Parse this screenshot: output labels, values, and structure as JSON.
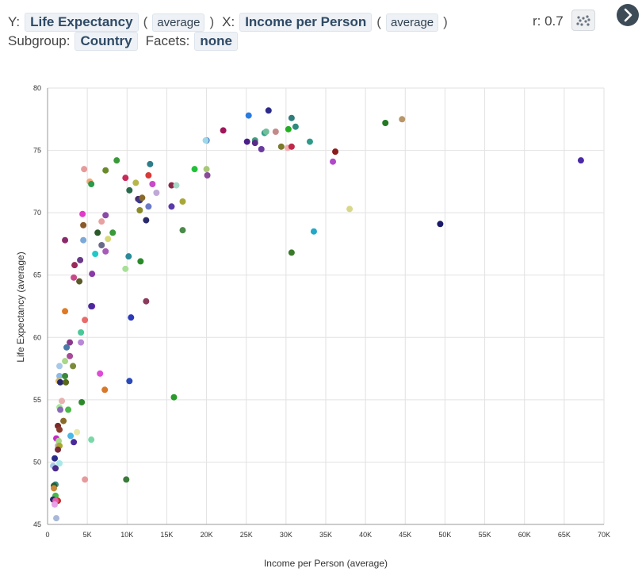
{
  "controls": {
    "y_prefix": "Y:",
    "y_variable": "Life Expectancy",
    "y_aggregation": "average",
    "x_prefix": "X:",
    "x_variable": "Income per Person",
    "x_aggregation": "average",
    "open_paren": "(",
    "close_paren": ")",
    "subgroup_label": "Subgroup:",
    "subgroup_value": "Country",
    "facets_label": "Facets:",
    "facets_value": "none",
    "correlation": "r: 0.7"
  },
  "icons": {
    "chart_type": "scatter-plot-icon",
    "next": "chevron-right-icon"
  },
  "colors": {
    "pill_bg": "#eef2f6",
    "pill_text": "#2f4a66",
    "next_button": "#3d4b57",
    "grid": "#e2e2e2"
  },
  "chart_data": {
    "type": "scatter",
    "xlabel": "Income per Person (average)",
    "ylabel": "Life Expectancy (average)",
    "xlim": [
      0,
      70000
    ],
    "ylim": [
      45,
      80
    ],
    "x_ticks": [
      0,
      5000,
      10000,
      15000,
      20000,
      25000,
      30000,
      35000,
      40000,
      45000,
      50000,
      55000,
      60000,
      65000,
      70000
    ],
    "x_tick_labels": [
      "0",
      "5K",
      "10K",
      "15K",
      "20K",
      "25K",
      "30K",
      "35K",
      "40K",
      "45K",
      "50K",
      "55K",
      "60K",
      "65K",
      "70K"
    ],
    "y_ticks": [
      45,
      50,
      55,
      60,
      65,
      70,
      75,
      80
    ],
    "y_tick_labels": [
      "45",
      "50",
      "55",
      "60",
      "65",
      "70",
      "75",
      "80"
    ],
    "grid": true,
    "points": [
      {
        "x": 25300,
        "y": 77.8,
        "color": "#2a7be0"
      },
      {
        "x": 27800,
        "y": 78.2,
        "color": "#2b2b8a"
      },
      {
        "x": 30700,
        "y": 77.6,
        "color": "#2e7d7d"
      },
      {
        "x": 31200,
        "y": 76.9,
        "color": "#2e8b7d"
      },
      {
        "x": 22100,
        "y": 76.6,
        "color": "#a0155a"
      },
      {
        "x": 27300,
        "y": 76.4,
        "color": "#34a08a"
      },
      {
        "x": 28700,
        "y": 76.5,
        "color": "#c48a8a"
      },
      {
        "x": 30300,
        "y": 76.7,
        "color": "#22b022"
      },
      {
        "x": 27500,
        "y": 76.5,
        "color": "#6fbf9a"
      },
      {
        "x": 42500,
        "y": 77.2,
        "color": "#237a23"
      },
      {
        "x": 44600,
        "y": 77.5,
        "color": "#b8966a"
      },
      {
        "x": 20000,
        "y": 75.8,
        "color": "#2a5fc4"
      },
      {
        "x": 19900,
        "y": 75.8,
        "color": "#9ed7e8"
      },
      {
        "x": 25100,
        "y": 75.7,
        "color": "#4a1f8a"
      },
      {
        "x": 26100,
        "y": 75.8,
        "color": "#3fa07a"
      },
      {
        "x": 26100,
        "y": 75.6,
        "color": "#5a2a8a"
      },
      {
        "x": 26900,
        "y": 75.1,
        "color": "#6a3aa0"
      },
      {
        "x": 29400,
        "y": 75.3,
        "color": "#7a7a2a"
      },
      {
        "x": 30200,
        "y": 75.2,
        "color": "#f0b0b0"
      },
      {
        "x": 30700,
        "y": 75.3,
        "color": "#c0284a"
      },
      {
        "x": 33000,
        "y": 75.7,
        "color": "#2e9b8a"
      },
      {
        "x": 36200,
        "y": 74.9,
        "color": "#8b1a1a"
      },
      {
        "x": 35900,
        "y": 74.1,
        "color": "#b048c8"
      },
      {
        "x": 67100,
        "y": 74.2,
        "color": "#4a2aa8"
      },
      {
        "x": 8700,
        "y": 74.2,
        "color": "#3a9a3a"
      },
      {
        "x": 12900,
        "y": 73.9,
        "color": "#2e7d8a"
      },
      {
        "x": 7300,
        "y": 73.4,
        "color": "#6a8a2a"
      },
      {
        "x": 4600,
        "y": 73.5,
        "color": "#e89a9a"
      },
      {
        "x": 18500,
        "y": 73.5,
        "color": "#22c03a"
      },
      {
        "x": 20000,
        "y": 73.5,
        "color": "#a8c878"
      },
      {
        "x": 20100,
        "y": 73.0,
        "color": "#8a4a9a"
      },
      {
        "x": 12700,
        "y": 73.0,
        "color": "#d83a3a"
      },
      {
        "x": 9800,
        "y": 72.8,
        "color": "#c82a5a"
      },
      {
        "x": 5300,
        "y": 72.5,
        "color": "#f0a878"
      },
      {
        "x": 5500,
        "y": 72.3,
        "color": "#2a9a4a"
      },
      {
        "x": 11100,
        "y": 72.4,
        "color": "#b8b84a"
      },
      {
        "x": 13200,
        "y": 72.3,
        "color": "#c84ac8"
      },
      {
        "x": 15600,
        "y": 72.2,
        "color": "#8a2a4a"
      },
      {
        "x": 16200,
        "y": 72.2,
        "color": "#a8d8c8"
      },
      {
        "x": 10300,
        "y": 71.8,
        "color": "#2a6a4a"
      },
      {
        "x": 13700,
        "y": 71.6,
        "color": "#c0a8d8"
      },
      {
        "x": 11400,
        "y": 71.1,
        "color": "#4a2a6a"
      },
      {
        "x": 11600,
        "y": 71.0,
        "color": "#3a3a8a"
      },
      {
        "x": 11900,
        "y": 71.2,
        "color": "#8a6a2a"
      },
      {
        "x": 17000,
        "y": 70.9,
        "color": "#a8a83a"
      },
      {
        "x": 12700,
        "y": 70.5,
        "color": "#6a7ac8"
      },
      {
        "x": 15600,
        "y": 70.5,
        "color": "#5a3aa8"
      },
      {
        "x": 11600,
        "y": 70.2,
        "color": "#8a8a2a"
      },
      {
        "x": 38000,
        "y": 70.3,
        "color": "#d8d88a"
      },
      {
        "x": 4400,
        "y": 69.9,
        "color": "#e03ac8"
      },
      {
        "x": 7300,
        "y": 69.8,
        "color": "#8a4aa8"
      },
      {
        "x": 6800,
        "y": 69.3,
        "color": "#e8a0a0"
      },
      {
        "x": 12400,
        "y": 69.4,
        "color": "#2a2a6a"
      },
      {
        "x": 4500,
        "y": 69.0,
        "color": "#8a5a2a"
      },
      {
        "x": 49400,
        "y": 69.1,
        "color": "#1a1a6a"
      },
      {
        "x": 17000,
        "y": 68.6,
        "color": "#4a8a4a"
      },
      {
        "x": 33500,
        "y": 68.5,
        "color": "#22a8c8"
      },
      {
        "x": 6300,
        "y": 68.4,
        "color": "#2a5a2a"
      },
      {
        "x": 8200,
        "y": 68.4,
        "color": "#3a9a3a"
      },
      {
        "x": 2200,
        "y": 67.8,
        "color": "#8a2a6a"
      },
      {
        "x": 4500,
        "y": 67.8,
        "color": "#7aa8d8"
      },
      {
        "x": 7600,
        "y": 67.9,
        "color": "#d8d878"
      },
      {
        "x": 6800,
        "y": 67.4,
        "color": "#6a6a8a"
      },
      {
        "x": 7300,
        "y": 66.9,
        "color": "#a85ab8"
      },
      {
        "x": 6000,
        "y": 66.7,
        "color": "#22c8c8"
      },
      {
        "x": 30700,
        "y": 66.8,
        "color": "#3a7a2a"
      },
      {
        "x": 10200,
        "y": 66.5,
        "color": "#2a8a9a"
      },
      {
        "x": 4100,
        "y": 66.2,
        "color": "#6a3a8a"
      },
      {
        "x": 11700,
        "y": 66.1,
        "color": "#2a8a2a"
      },
      {
        "x": 3400,
        "y": 65.8,
        "color": "#9a2a5a"
      },
      {
        "x": 9800,
        "y": 65.5,
        "color": "#a8e098"
      },
      {
        "x": 5600,
        "y": 65.1,
        "color": "#8a3aa8"
      },
      {
        "x": 3300,
        "y": 64.8,
        "color": "#c84a8a"
      },
      {
        "x": 4000,
        "y": 64.5,
        "color": "#5a5a2a"
      },
      {
        "x": 12400,
        "y": 62.9,
        "color": "#8a3a5a"
      },
      {
        "x": 5600,
        "y": 62.5,
        "color": "#7a2ac8"
      },
      {
        "x": 5500,
        "y": 62.5,
        "color": "#4a2a9a"
      },
      {
        "x": 2200,
        "y": 62.1,
        "color": "#e07a22"
      },
      {
        "x": 4700,
        "y": 61.4,
        "color": "#e86a6a"
      },
      {
        "x": 10500,
        "y": 61.6,
        "color": "#2a3ab8"
      },
      {
        "x": 4200,
        "y": 60.4,
        "color": "#4ac89a"
      },
      {
        "x": 2800,
        "y": 59.6,
        "color": "#8a3a8a"
      },
      {
        "x": 4200,
        "y": 59.6,
        "color": "#b888d8"
      },
      {
        "x": 2400,
        "y": 59.2,
        "color": "#4a7aa8"
      },
      {
        "x": 2800,
        "y": 58.5,
        "color": "#a84a9a"
      },
      {
        "x": 2200,
        "y": 58.1,
        "color": "#a8d888"
      },
      {
        "x": 1500,
        "y": 57.7,
        "color": "#a8c8e8"
      },
      {
        "x": 3200,
        "y": 57.7,
        "color": "#7a8a3a"
      },
      {
        "x": 6600,
        "y": 57.1,
        "color": "#e04ad8"
      },
      {
        "x": 1500,
        "y": 56.9,
        "color": "#8ab8e8"
      },
      {
        "x": 2200,
        "y": 56.9,
        "color": "#3a8a3a"
      },
      {
        "x": 1400,
        "y": 56.5,
        "color": "#d8b86a"
      },
      {
        "x": 1600,
        "y": 56.4,
        "color": "#2a2a6a"
      },
      {
        "x": 2300,
        "y": 56.4,
        "color": "#5a6a1a"
      },
      {
        "x": 10300,
        "y": 56.5,
        "color": "#2a4ab8"
      },
      {
        "x": 7200,
        "y": 55.8,
        "color": "#d8782a"
      },
      {
        "x": 15900,
        "y": 55.2,
        "color": "#2a9a2a"
      },
      {
        "x": 1800,
        "y": 54.9,
        "color": "#e8b0b0"
      },
      {
        "x": 4300,
        "y": 54.8,
        "color": "#2a8a2a"
      },
      {
        "x": 1500,
        "y": 54.4,
        "color": "#a8e898"
      },
      {
        "x": 1600,
        "y": 54.2,
        "color": "#8a6ab8"
      },
      {
        "x": 2600,
        "y": 54.2,
        "color": "#4ab84a"
      },
      {
        "x": 2000,
        "y": 53.3,
        "color": "#8a6a2a"
      },
      {
        "x": 1300,
        "y": 52.9,
        "color": "#7a2a2a"
      },
      {
        "x": 1500,
        "y": 52.6,
        "color": "#8a3a2a"
      },
      {
        "x": 3700,
        "y": 52.4,
        "color": "#e8e8a8"
      },
      {
        "x": 2900,
        "y": 52.1,
        "color": "#4ab8e8"
      },
      {
        "x": 1100,
        "y": 51.9,
        "color": "#c82ac8"
      },
      {
        "x": 1400,
        "y": 51.7,
        "color": "#a8d888"
      },
      {
        "x": 3300,
        "y": 51.6,
        "color": "#4a2a9a"
      },
      {
        "x": 5500,
        "y": 51.8,
        "color": "#7ad8a8"
      },
      {
        "x": 1300,
        "y": 51.3,
        "color": "#c8a8d8"
      },
      {
        "x": 1500,
        "y": 51.3,
        "color": "#a8a82a"
      },
      {
        "x": 1300,
        "y": 51.0,
        "color": "#7a2a3a"
      },
      {
        "x": 900,
        "y": 50.3,
        "color": "#2a2a8a"
      },
      {
        "x": 1500,
        "y": 49.9,
        "color": "#a8e8e8"
      },
      {
        "x": 700,
        "y": 49.7,
        "color": "#a8c8e8"
      },
      {
        "x": 1000,
        "y": 49.5,
        "color": "#4a2a8a"
      },
      {
        "x": 4700,
        "y": 48.6,
        "color": "#e89a9a"
      },
      {
        "x": 9900,
        "y": 48.6,
        "color": "#3a7a3a"
      },
      {
        "x": 1000,
        "y": 48.2,
        "color": "#3a8a8a"
      },
      {
        "x": 800,
        "y": 48.1,
        "color": "#2a5a2a"
      },
      {
        "x": 800,
        "y": 47.9,
        "color": "#c88a3a"
      },
      {
        "x": 1000,
        "y": 47.3,
        "color": "#4ab84a"
      },
      {
        "x": 700,
        "y": 47.0,
        "color": "#2a2a6a"
      },
      {
        "x": 1300,
        "y": 46.9,
        "color": "#c82a2a"
      },
      {
        "x": 1000,
        "y": 46.9,
        "color": "#e060b0"
      },
      {
        "x": 900,
        "y": 46.6,
        "color": "#e8a0e8"
      },
      {
        "x": 1100,
        "y": 45.5,
        "color": "#a8b8d8"
      }
    ]
  }
}
